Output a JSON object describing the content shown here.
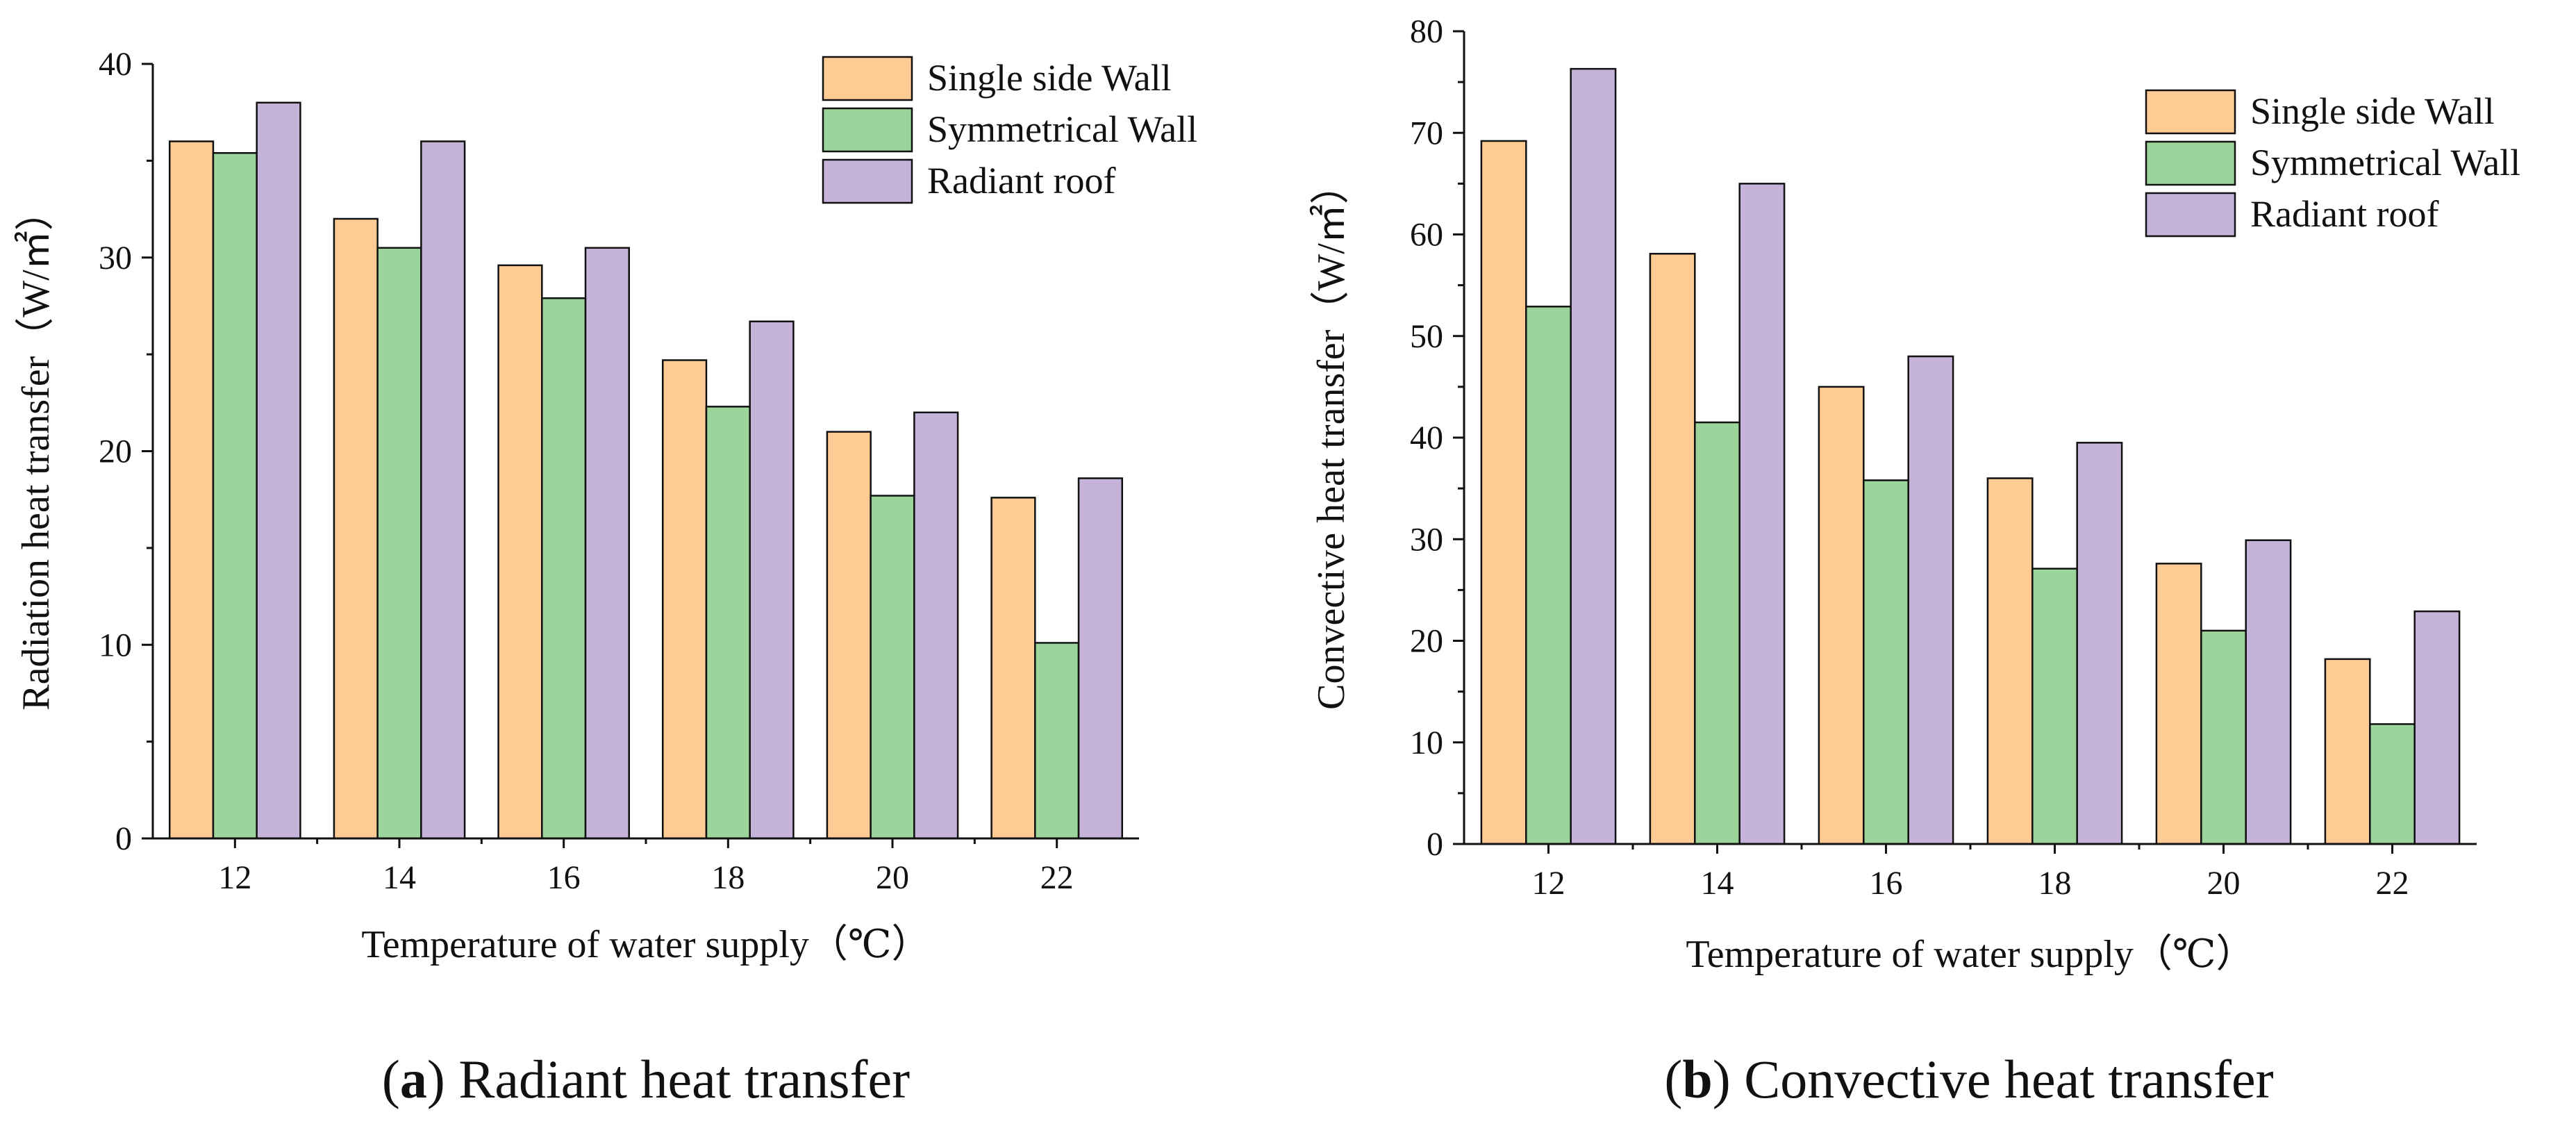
{
  "colors": {
    "series": [
      "#FFCB95",
      "#9BD59B",
      "#C5B3D9"
    ],
    "stroke": "#111111"
  },
  "chart_data": [
    {
      "type": "bar",
      "title": "",
      "xlabel": "Temperature of water supply（℃）",
      "ylabel": "Radiation heat transfer（W/㎡）",
      "ylim": [
        0,
        40
      ],
      "yticks": [
        0,
        10,
        20,
        30,
        40
      ],
      "grid": false,
      "legend_position": "top-right",
      "categories": [
        "12",
        "14",
        "16",
        "18",
        "20",
        "22"
      ],
      "series": [
        {
          "name": "Single side Wall",
          "values": [
            36,
            32,
            29.6,
            24.7,
            21,
            17.6
          ]
        },
        {
          "name": "Symmetrical Wall",
          "values": [
            35.4,
            30.5,
            27.9,
            22.3,
            17.7,
            10.1
          ]
        },
        {
          "name": "Radiant roof",
          "values": [
            38,
            36,
            30.5,
            26.7,
            22,
            18.6
          ]
        }
      ],
      "caption": {
        "letter": "a",
        "text": "Radiant heat transfer"
      }
    },
    {
      "type": "bar",
      "title": "",
      "xlabel": "Temperature of water supply（℃）",
      "ylabel": "Convective heat transfer（W/㎡）",
      "ylim": [
        0,
        80
      ],
      "yticks": [
        0,
        10,
        20,
        30,
        40,
        50,
        60,
        70,
        80
      ],
      "grid": false,
      "legend_position": "top-right",
      "categories": [
        "12",
        "14",
        "16",
        "18",
        "20",
        "22"
      ],
      "series": [
        {
          "name": "Single side Wall",
          "values": [
            69.2,
            58.1,
            45,
            36,
            27.6,
            18.2
          ]
        },
        {
          "name": "Symmetrical Wall",
          "values": [
            52.9,
            41.5,
            35.8,
            27.1,
            21,
            11.8
          ]
        },
        {
          "name": "Radiant roof",
          "values": [
            76.3,
            65,
            48,
            39.5,
            29.9,
            22.9
          ]
        }
      ],
      "caption": {
        "letter": "b",
        "text": "Convective heat transfer"
      }
    }
  ]
}
